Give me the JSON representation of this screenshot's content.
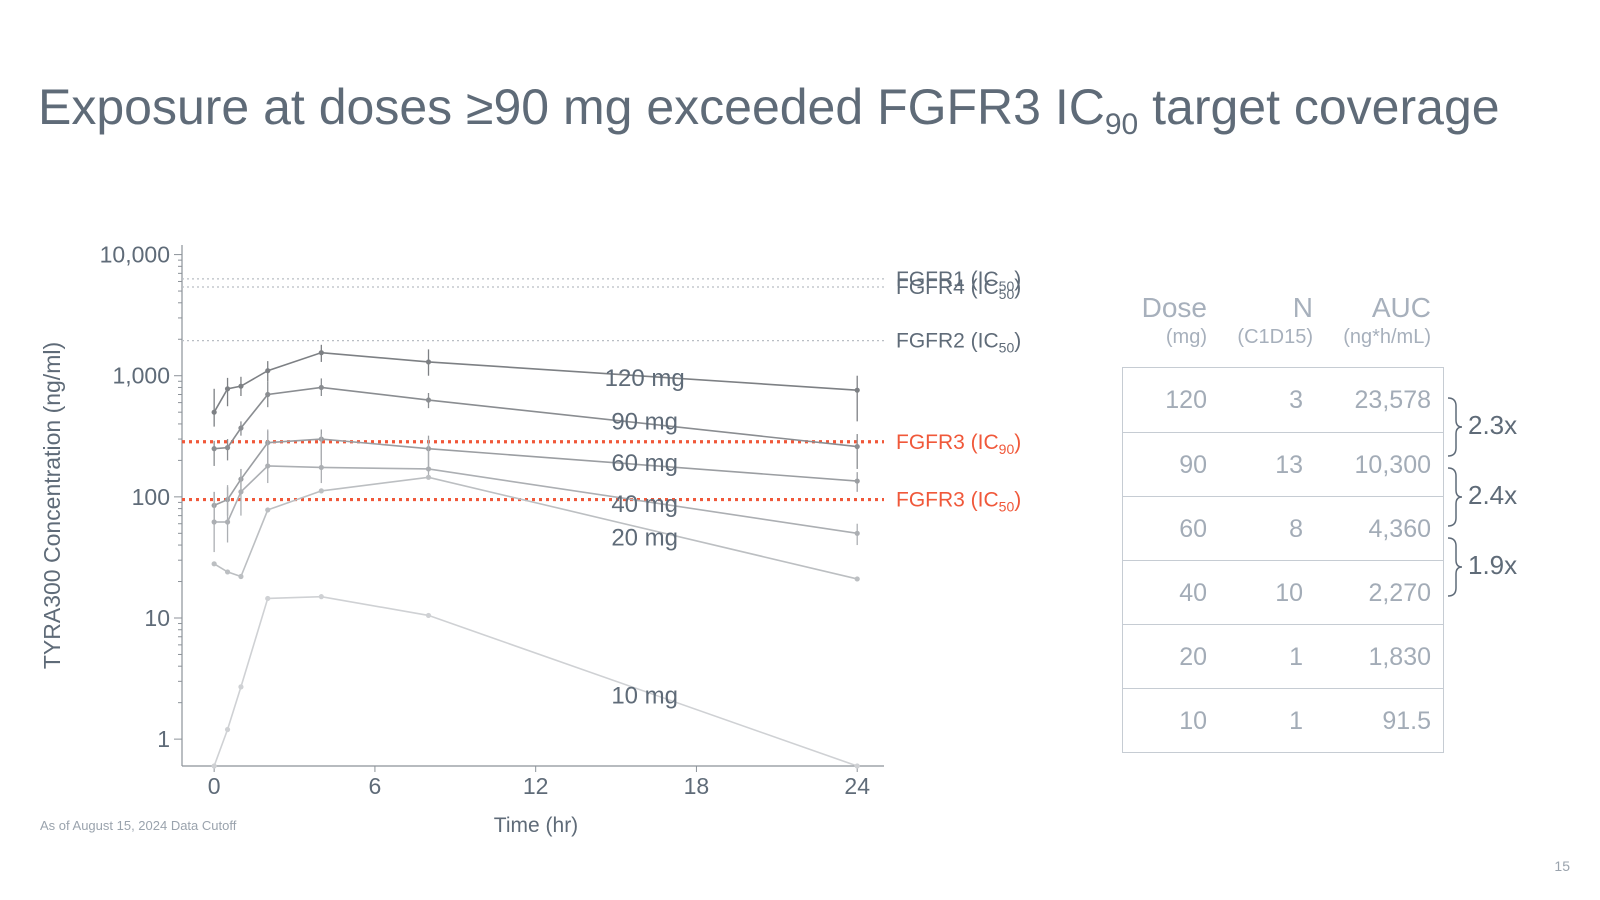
{
  "slide": {
    "title_main": "Exposure at doses ≥90 mg exceeded FGFR3 IC",
    "title_sub": "90",
    "title_end": " target coverage",
    "footnote": "As of August 15, 2024 Data Cutoff",
    "page_number": "15"
  },
  "colors": {
    "text": "#5f6b78",
    "accent": "#f0583a",
    "reference_gray": "#b9bec4",
    "table_text": "#a3acb7"
  },
  "chart_data": {
    "type": "line",
    "title": "",
    "xlabel": "Time (hr)",
    "ylabel": "TYRA300 Concentration (ng/ml)",
    "x_scale": "linear",
    "y_scale": "log",
    "xlim": [
      -1.2,
      25
    ],
    "ylim": [
      0.6,
      12000
    ],
    "x_ticks": [
      0,
      6,
      12,
      18,
      24
    ],
    "x_tick_labels": [
      "0",
      "6",
      "12",
      "18",
      "24"
    ],
    "y_ticks": [
      1,
      10,
      100,
      1000,
      10000
    ],
    "y_tick_labels": [
      "1",
      "10",
      "100",
      "1,000",
      "10,000"
    ],
    "reference_lines": [
      {
        "label": "FGFR1 (IC",
        "sub": "50",
        "value": 6300,
        "style": "dotted",
        "color": "#b9bec4"
      },
      {
        "label": "FGFR4 (IC",
        "sub": "50",
        "value": 5400,
        "style": "dotted",
        "color": "#b9bec4"
      },
      {
        "label": "FGFR2 (IC",
        "sub": "50",
        "value": 1950,
        "style": "dotted",
        "color": "#b9bec4"
      },
      {
        "label": "FGFR3 (IC",
        "sub": "90",
        "value": 285,
        "style": "dotted-thick",
        "color": "#f0583a"
      },
      {
        "label": "FGFR3 (IC",
        "sub": "50",
        "value": 95,
        "style": "dotted-thick",
        "color": "#f0583a"
      }
    ],
    "series": [
      {
        "name": "120 mg",
        "color": "#7d8084",
        "x": [
          0,
          0.5,
          1,
          2,
          4,
          8,
          24
        ],
        "y": [
          500,
          780,
          820,
          1100,
          1550,
          1300,
          760
        ],
        "err_low": [
          380,
          560,
          680,
          900,
          1300,
          1000,
          420
        ],
        "err_high": [
          780,
          960,
          980,
          1320,
          1800,
          1650,
          1000
        ]
      },
      {
        "name": "90 mg",
        "color": "#8a8d91",
        "x": [
          0,
          0.5,
          1,
          2,
          4,
          8,
          24
        ],
        "y": [
          250,
          255,
          370,
          700,
          800,
          630,
          260
        ],
        "err_low": [
          180,
          200,
          320,
          550,
          680,
          540,
          170
        ],
        "err_high": [
          290,
          300,
          420,
          900,
          950,
          720,
          330
        ]
      },
      {
        "name": "60 mg",
        "color": "#9b9ea2",
        "x": [
          0,
          0.5,
          1,
          2,
          4,
          8,
          24
        ],
        "y": [
          85,
          95,
          140,
          280,
          300,
          250,
          135
        ],
        "err_low": [
          60,
          70,
          110,
          190,
          200,
          180,
          110
        ],
        "err_high": [
          110,
          120,
          170,
          350,
          360,
          320,
          160
        ]
      },
      {
        "name": "40 mg",
        "color": "#acafb3",
        "x": [
          0,
          0.5,
          1,
          2,
          4,
          8,
          24
        ],
        "y": [
          62,
          62,
          110,
          180,
          175,
          170,
          50
        ],
        "err_low": [
          35,
          42,
          70,
          130,
          130,
          140,
          40
        ],
        "err_high": [
          95,
          125,
          155,
          360,
          330,
          300,
          60
        ]
      },
      {
        "name": "20 mg",
        "color": "#bcbfc2",
        "x": [
          0,
          0.5,
          1,
          2,
          4,
          8,
          24
        ],
        "y": [
          28,
          24,
          22,
          78,
          112,
          145,
          21
        ],
        "err_low": [],
        "err_high": []
      },
      {
        "name": "10 mg",
        "color": "#cfd1d4",
        "x": [
          0,
          0.5,
          1,
          2,
          4,
          8,
          24
        ],
        "y": [
          0.6,
          1.2,
          2.7,
          14.5,
          15,
          10.5,
          0.6
        ],
        "err_low": [],
        "err_high": []
      }
    ],
    "series_labels": [
      {
        "name": "120 mg",
        "x": 14.5,
        "y": 960
      },
      {
        "name": "90 mg",
        "x": 14.5,
        "y": 420
      },
      {
        "name": "60 mg",
        "x": 14.5,
        "y": 190
      },
      {
        "name": "40 mg",
        "x": 14.5,
        "y": 87
      },
      {
        "name": "20 mg",
        "x": 14.5,
        "y": 46
      },
      {
        "name": "10 mg",
        "x": 14.5,
        "y": 2.3
      }
    ]
  },
  "auc_table": {
    "headers": [
      {
        "label": "Dose",
        "unit": "(mg)"
      },
      {
        "label": "N",
        "unit": "(C1D15)"
      },
      {
        "label": "AUC",
        "unit": "(ng*h/mL)"
      }
    ],
    "rows": [
      [
        "120",
        "3",
        "23,578"
      ],
      [
        "90",
        "13",
        "10,300"
      ],
      [
        "60",
        "8",
        "4,360"
      ],
      [
        "40",
        "10",
        "2,270"
      ],
      [
        "20",
        "1",
        "1,830"
      ],
      [
        "10",
        "1",
        "91.5"
      ]
    ],
    "ratios": [
      "2.3x",
      "2.4x",
      "1.9x"
    ]
  }
}
